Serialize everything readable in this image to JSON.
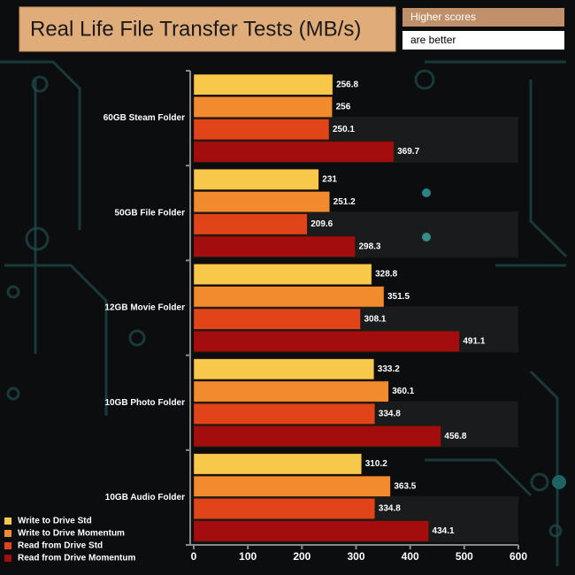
{
  "chart_data": {
    "type": "hbar",
    "title": "Real Life File Transfer Tests (MB/s)",
    "note_line1": "Higher scores",
    "note_line2": "are better",
    "categories": [
      "60GB Steam Folder",
      "50GB File Folder",
      "12GB Movie Folder",
      "10GB Photo Folder",
      "10GB Audio Folder"
    ],
    "series": [
      {
        "name": "Write to Drive Std",
        "color": "#f7c84a",
        "values": [
          256.8,
          231,
          328.8,
          333.2,
          310.2
        ]
      },
      {
        "name": "Write to Drive Momentum",
        "color": "#f28a2e",
        "values": [
          256,
          251.2,
          351.5,
          360.1,
          363.5
        ]
      },
      {
        "name": "Read from Drive Std",
        "color": "#e2441a",
        "values": [
          250.1,
          209.6,
          308.1,
          334.8,
          334.8
        ]
      },
      {
        "name": "Read from Drive Momentum",
        "color": "#a30d0d",
        "values": [
          369.7,
          298.3,
          491.1,
          456.8,
          434.1
        ]
      }
    ],
    "xlim": [
      0,
      600
    ],
    "xticks": [
      0,
      100,
      200,
      300,
      400,
      500,
      600
    ],
    "legend": "lower-left"
  }
}
